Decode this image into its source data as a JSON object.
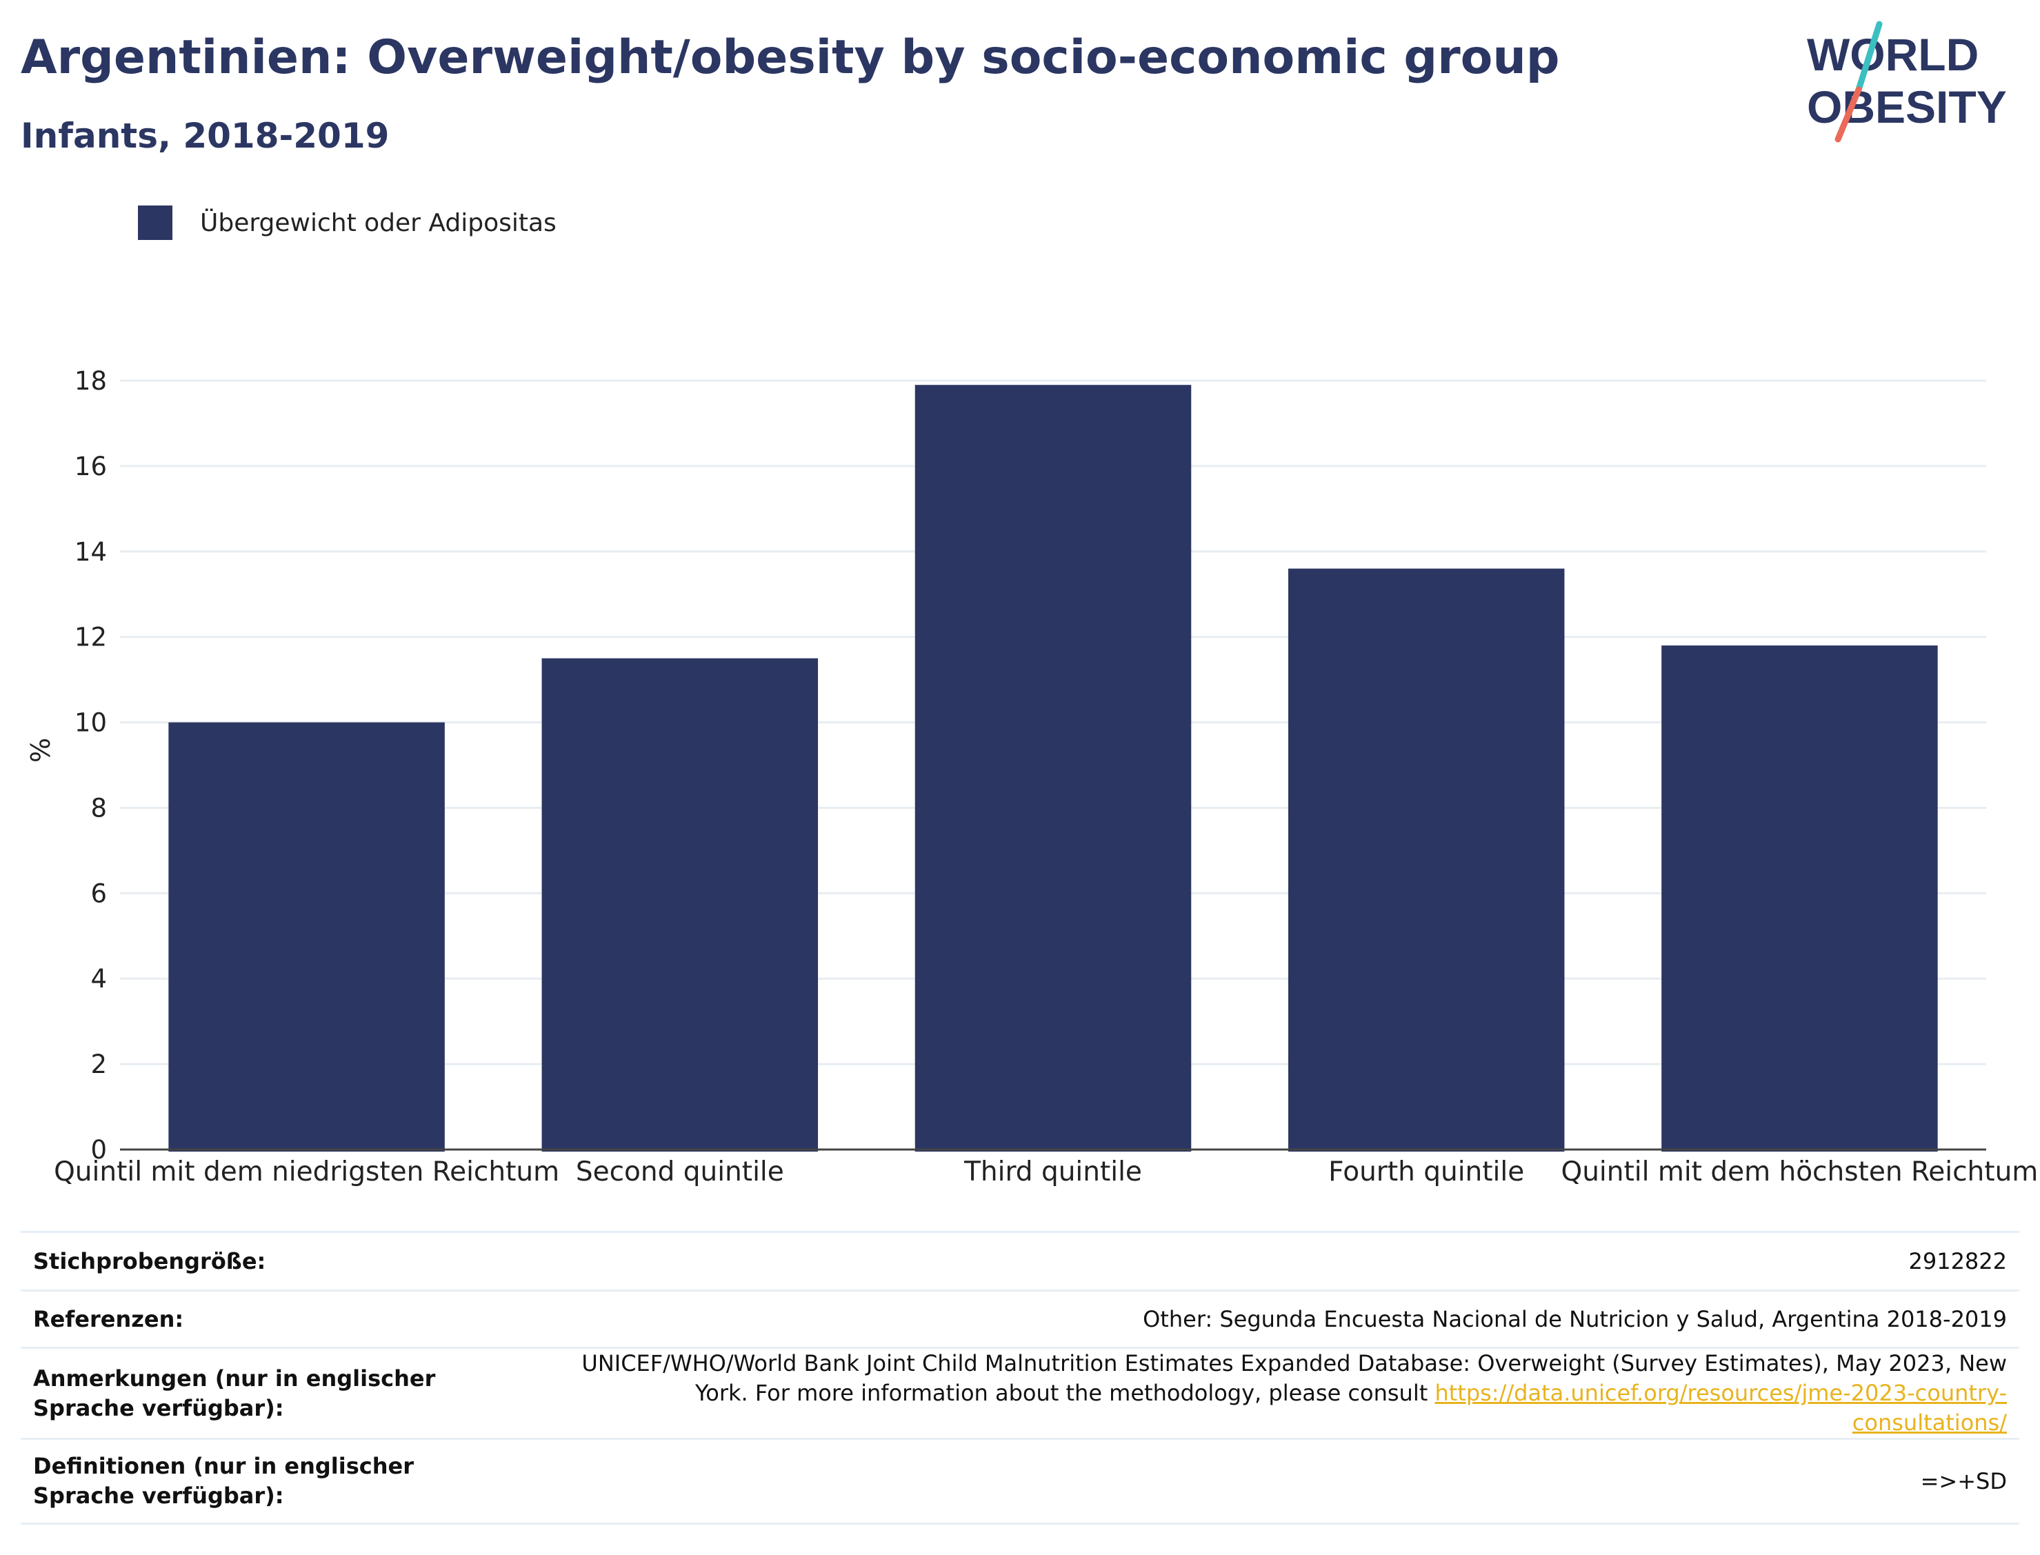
{
  "header": {
    "title": "Argentinien: Overweight/obesity by socio-economic group",
    "subtitle": "Infants, 2018-2019"
  },
  "logo": {
    "line1": "WORLD",
    "line2": "OBESITY",
    "colors": {
      "text": "#2b3662",
      "slash_top": "#3bbfc1",
      "slash_bottom": "#ea6b5a"
    }
  },
  "legend": {
    "label": "Übergewicht oder Adipositas",
    "color": "#2b3662"
  },
  "chart_data": {
    "type": "bar",
    "categories": [
      "Quintil mit dem niedrigsten Reichtum",
      "Second quintile",
      "Third quintile",
      "Fourth quintile",
      "Quintil mit dem höchsten Reichtum"
    ],
    "series": [
      {
        "name": "Übergewicht oder Adipositas",
        "values": [
          10.0,
          11.5,
          17.9,
          13.6,
          11.8
        ]
      }
    ],
    "ylabel": "%",
    "xlabel": "",
    "ylim": [
      0,
      18
    ],
    "yticks": [
      0,
      2,
      4,
      6,
      8,
      10,
      12,
      14,
      16,
      18
    ],
    "grid": true,
    "bar_color": "#2b3662",
    "grid_color": "#e8edf2"
  },
  "info_table": {
    "sample_size": {
      "label": "Stichprobengröße:",
      "value": "2912822"
    },
    "references": {
      "label": "Referenzen:",
      "value": "Other: Segunda Encuesta Nacional de Nutricion y Salud, Argentina 2018-2019"
    },
    "notes": {
      "label": "Anmerkungen (nur in englischer Sprache verfügbar):",
      "value": "UNICEF/WHO/World Bank Joint Child Malnutrition Estimates Expanded Database: Overweight (Survey Estimates), May 2023, New York. For more information about the methodology, please consult",
      "link": "https://data.unicef.org/resources/jme-2023-country-consultations/"
    },
    "definitions": {
      "label": "Definitionen (nur in englischer Sprache verfügbar):",
      "value": "=>+SD"
    }
  }
}
